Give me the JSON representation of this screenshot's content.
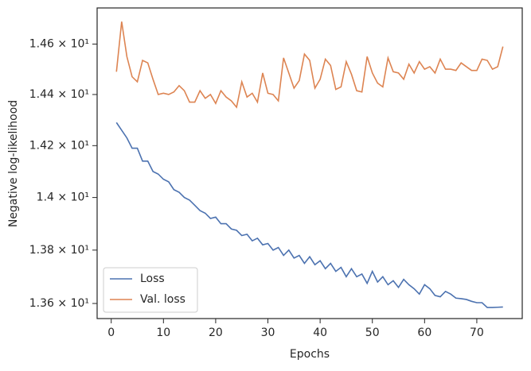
{
  "chart_data": {
    "type": "line",
    "xlabel": "Epochs",
    "ylabel": "Negative log-likelihood",
    "log_y": true,
    "grid": false,
    "legend": "lower left",
    "xlim": [
      -2.7,
      78.7
    ],
    "xticks": [
      0,
      10,
      20,
      30,
      40,
      50,
      60,
      70
    ],
    "ylim": [
      13.544,
      14.745
    ],
    "yticks": [
      {
        "value": 13.6,
        "label": "1.36 × 10¹"
      },
      {
        "value": 13.8,
        "label": "1.38 × 10¹"
      },
      {
        "value": 14.0,
        "label": "1.4 × 10¹"
      },
      {
        "value": 14.2,
        "label": "1.42 × 10¹"
      },
      {
        "value": 14.4,
        "label": "1.44 × 10¹"
      },
      {
        "value": 14.6,
        "label": "1.46 × 10¹"
      }
    ],
    "x": [
      1,
      2,
      3,
      4,
      5,
      6,
      7,
      8,
      9,
      10,
      11,
      12,
      13,
      14,
      15,
      16,
      17,
      18,
      19,
      20,
      21,
      22,
      23,
      24,
      25,
      26,
      27,
      28,
      29,
      30,
      31,
      32,
      33,
      34,
      35,
      36,
      37,
      38,
      39,
      40,
      41,
      42,
      43,
      44,
      45,
      46,
      47,
      48,
      49,
      50,
      51,
      52,
      53,
      54,
      55,
      56,
      57,
      58,
      59,
      60,
      61,
      62,
      63,
      64,
      65,
      66,
      67,
      68,
      69,
      70,
      71,
      72,
      73,
      74,
      75
    ],
    "series": [
      {
        "name": "Loss",
        "color": "#4c72b0",
        "values": [
          14.29,
          14.26,
          14.23,
          14.19,
          14.19,
          14.14,
          14.14,
          14.1,
          14.09,
          14.07,
          14.06,
          14.03,
          14.02,
          14.0,
          13.99,
          13.97,
          13.95,
          13.94,
          13.92,
          13.925,
          13.9,
          13.9,
          13.88,
          13.875,
          13.855,
          13.86,
          13.835,
          13.845,
          13.82,
          13.825,
          13.8,
          13.81,
          13.78,
          13.8,
          13.77,
          13.78,
          13.75,
          13.775,
          13.745,
          13.76,
          13.73,
          13.75,
          13.72,
          13.735,
          13.7,
          13.73,
          13.7,
          13.71,
          13.675,
          13.72,
          13.68,
          13.7,
          13.67,
          13.685,
          13.66,
          13.69,
          13.67,
          13.655,
          13.635,
          13.67,
          13.655,
          13.63,
          13.625,
          13.645,
          13.635,
          13.62,
          13.618,
          13.615,
          13.608,
          13.603,
          13.603,
          13.585,
          13.585,
          13.586,
          13.587
        ]
      },
      {
        "name": "Val. loss",
        "color": "#dd8452",
        "values": [
          14.49,
          14.69,
          14.55,
          14.47,
          14.45,
          14.535,
          14.525,
          14.46,
          14.4,
          14.405,
          14.4,
          14.41,
          14.435,
          14.415,
          14.37,
          14.37,
          14.415,
          14.385,
          14.4,
          14.365,
          14.415,
          14.39,
          14.375,
          14.35,
          14.45,
          14.39,
          14.405,
          14.37,
          14.485,
          14.405,
          14.4,
          14.375,
          14.545,
          14.485,
          14.425,
          14.455,
          14.56,
          14.535,
          14.425,
          14.46,
          14.54,
          14.515,
          14.42,
          14.43,
          14.53,
          14.48,
          14.415,
          14.41,
          14.55,
          14.485,
          14.445,
          14.43,
          14.545,
          14.49,
          14.485,
          14.46,
          14.52,
          14.485,
          14.53,
          14.5,
          14.51,
          14.485,
          14.54,
          14.5,
          14.5,
          14.495,
          14.525,
          14.51,
          14.495,
          14.495,
          14.54,
          14.535,
          14.5,
          14.51,
          14.59
        ]
      }
    ]
  }
}
